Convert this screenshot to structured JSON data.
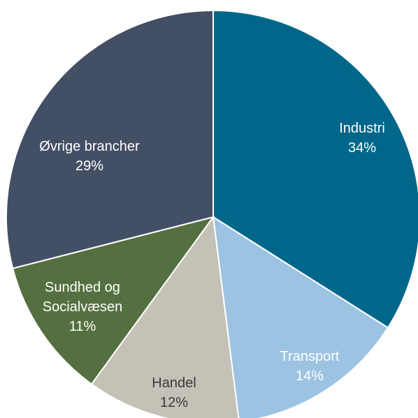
{
  "chart_data": {
    "type": "pie",
    "title": "",
    "slices": [
      {
        "label": "Industri",
        "value": 34,
        "value_label": "34%",
        "color": "#00678b",
        "text_color": "#ffffff"
      },
      {
        "label": "Transport",
        "value": 14,
        "value_label": "14%",
        "color": "#9dc3e3",
        "text_color": "#ffffff"
      },
      {
        "label": "Handel",
        "value": 12,
        "value_label": "12%",
        "color": "#c4c1b6",
        "text_color": "#3a3a3a"
      },
      {
        "label": "Sundhed og Socialvæsen",
        "value": 11,
        "value_label": "11%",
        "color": "#557040",
        "text_color": "#ffffff"
      },
      {
        "label": "Øvrige brancher",
        "value": 29,
        "value_label": "29%",
        "color": "#434f65",
        "text_color": "#ffffff"
      }
    ],
    "start_angle": "12 o'clock",
    "direction": "clockwise",
    "legend": "none"
  }
}
